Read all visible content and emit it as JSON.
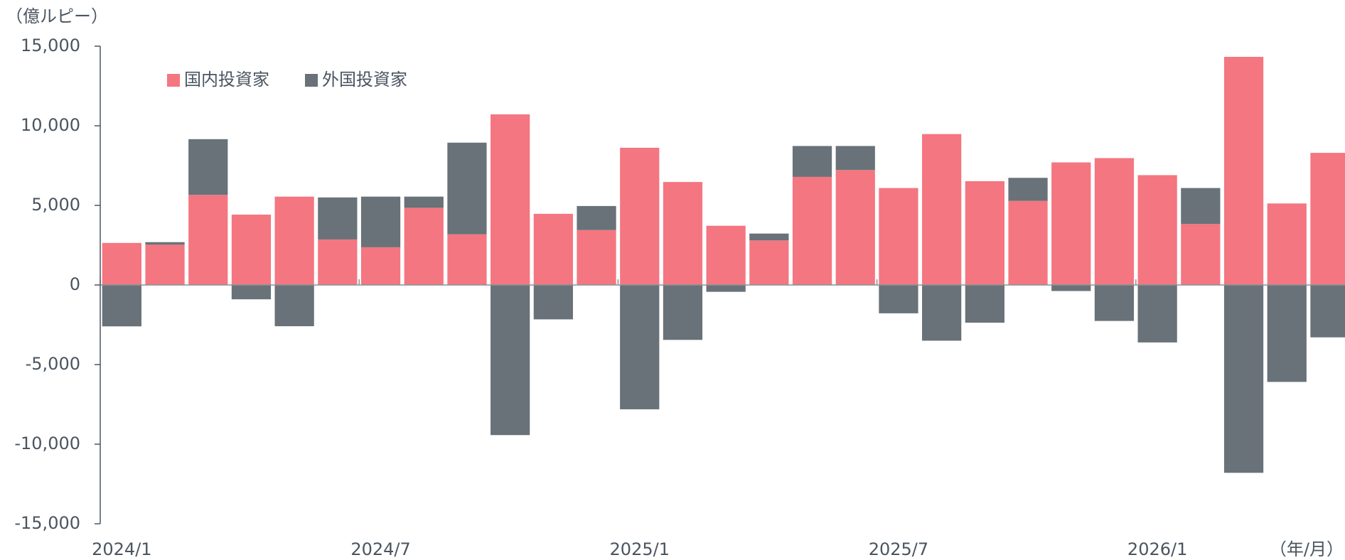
{
  "chart_data": {
    "type": "bar",
    "stacked": true,
    "y_label": "（億ルピー）",
    "x_label": "（年/月）",
    "categories": [
      "2024/1",
      null,
      null,
      null,
      null,
      null,
      "2024/7",
      null,
      null,
      null,
      null,
      null,
      "2025/1",
      null,
      null,
      null,
      null,
      null,
      "2025/7",
      null,
      null,
      null,
      null,
      null,
      "2026/1",
      null,
      null,
      null,
      null
    ],
    "series": [
      {
        "name": "国内投資家",
        "color": "#f47680",
        "values": [
          2640,
          2530,
          5660,
          4420,
          5550,
          2860,
          2370,
          4850,
          3180,
          10720,
          4470,
          3450,
          8620,
          6470,
          3720,
          2800,
          6790,
          7220,
          6090,
          9480,
          6520,
          5280,
          7700,
          7970,
          6900,
          3830,
          14330,
          5120,
          8300
        ]
      },
      {
        "name": "外国投資家",
        "color": "#687278",
        "values": [
          -2600,
          160,
          3500,
          -900,
          -2590,
          2640,
          3180,
          700,
          5760,
          -9430,
          -2160,
          1510,
          -7810,
          -3450,
          -430,
          430,
          1940,
          1510,
          -1780,
          -3500,
          -2370,
          1450,
          -380,
          -2260,
          -3610,
          2260,
          -11800,
          -6090,
          -3290
        ]
      }
    ],
    "ylim": [
      -15000,
      15000
    ],
    "yticks": [
      {
        "value": -15000,
        "label": "-15,000"
      },
      {
        "value": -10000,
        "label": "-10,000"
      },
      {
        "value": -5000,
        "label": "-5,000"
      },
      0,
      {
        "value": 5000,
        "label": "5,000"
      },
      {
        "value": 10000,
        "label": "10,000"
      },
      {
        "value": 15000,
        "label": "15,000"
      }
    ],
    "legend": "top-left"
  }
}
